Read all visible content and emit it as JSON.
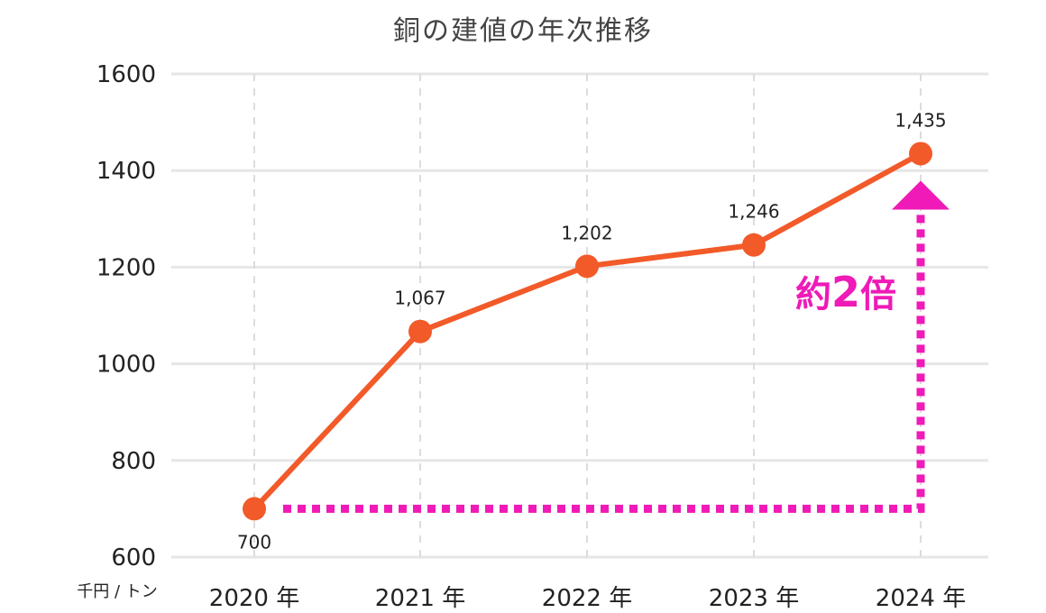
{
  "chart_data": {
    "type": "line",
    "title": "銅の建値の年次推移",
    "unit_label": "千円 / トン",
    "categories": [
      "2020 年",
      "2021 年",
      "2022 年",
      "2023 年",
      "2024 年"
    ],
    "values": [
      700,
      1067,
      1202,
      1246,
      1435
    ],
    "data_labels": [
      "700",
      "1,067",
      "1,202",
      "1,246",
      "1,435"
    ],
    "yticks": [
      "600",
      "800",
      "1000",
      "1200",
      "1400",
      "1600"
    ],
    "ylim": [
      600,
      1600
    ],
    "grid": true,
    "annotation": {
      "text_prefix": "約",
      "text_number": "2",
      "text_suffix": "倍"
    },
    "colors": {
      "series": "#f25a29",
      "annotation": "#ef1ab7",
      "grid": "#e6e6e6"
    }
  }
}
